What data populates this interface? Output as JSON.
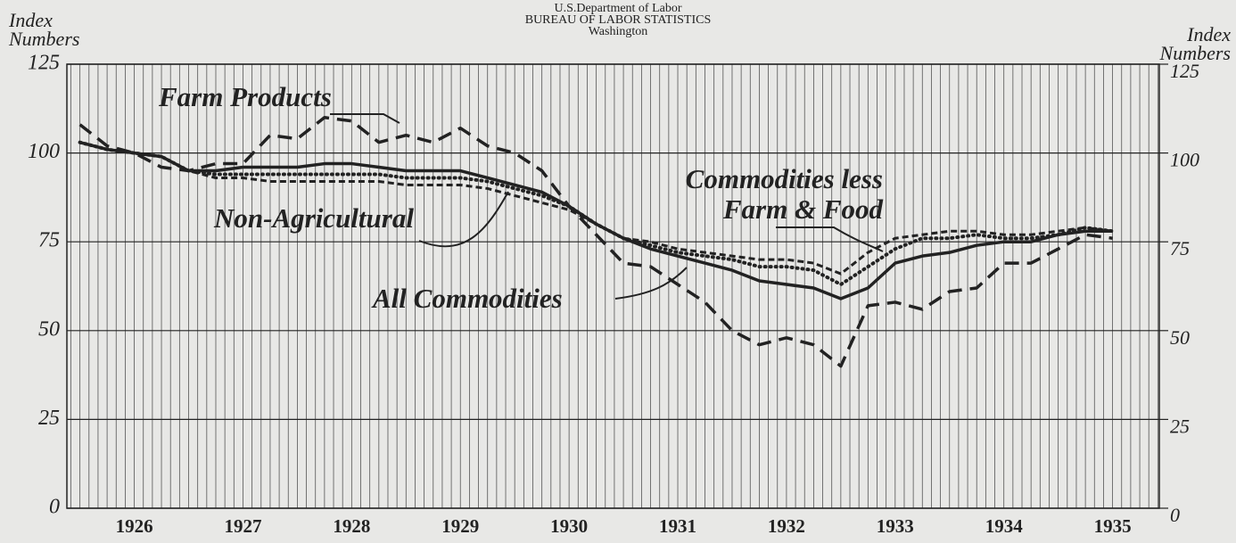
{
  "chart_data": {
    "type": "line",
    "header": [
      "U.S.Department of Labor",
      "BUREAU OF LABOR STATISTICS",
      "Washington"
    ],
    "y_label": "Index Numbers",
    "y2_label": "Index Numbers",
    "x": [
      1926.0,
      1926.25,
      1926.5,
      1926.75,
      1927.0,
      1927.25,
      1927.5,
      1927.75,
      1928.0,
      1928.25,
      1928.5,
      1928.75,
      1929.0,
      1929.25,
      1929.5,
      1929.75,
      1930.0,
      1930.25,
      1930.5,
      1930.75,
      1931.0,
      1931.25,
      1931.5,
      1931.75,
      1932.0,
      1932.25,
      1932.5,
      1932.75,
      1933.0,
      1933.25,
      1933.5,
      1933.75,
      1934.0,
      1934.25,
      1934.5,
      1934.75,
      1935.0,
      1935.25,
      1935.5
    ],
    "xlim": [
      1925.88,
      1935.93
    ],
    "xticks": [
      {
        "value": 1926.5,
        "label": "1926"
      },
      {
        "value": 1927.5,
        "label": "1927"
      },
      {
        "value": 1928.5,
        "label": "1928"
      },
      {
        "value": 1929.5,
        "label": "1929"
      },
      {
        "value": 1930.5,
        "label": "1930"
      },
      {
        "value": 1931.5,
        "label": "1931"
      },
      {
        "value": 1932.5,
        "label": "1932"
      },
      {
        "value": 1933.5,
        "label": "1933"
      },
      {
        "value": 1934.5,
        "label": "1934"
      },
      {
        "value": 1935.5,
        "label": "1935"
      }
    ],
    "ylim": [
      0,
      125
    ],
    "yticks": [
      0,
      25,
      50,
      75,
      100,
      125
    ],
    "y2lim": [
      0,
      125
    ],
    "y2ticks": [
      0,
      25,
      50,
      75,
      100,
      125
    ],
    "grid": true,
    "series": [
      {
        "name": "Farm Products",
        "color": "#222222",
        "dash": "dashed",
        "values": [
          108,
          102,
          100,
          96,
          95,
          97,
          97,
          105,
          104,
          110,
          109,
          103,
          105,
          103,
          107,
          102,
          100,
          95,
          85,
          77,
          69,
          68,
          63,
          58,
          50,
          46,
          48,
          46,
          40,
          57,
          58,
          56,
          61,
          62,
          69,
          69,
          73,
          77,
          76
        ]
      },
      {
        "name": "Non-Agricultural",
        "color": "#222222",
        "dash": "solid",
        "values": [
          103,
          101,
          100,
          99,
          95,
          95,
          96,
          96,
          96,
          97,
          97,
          96,
          95,
          95,
          95,
          93,
          91,
          89,
          85,
          80,
          76,
          73,
          71,
          69,
          67,
          64,
          63,
          62,
          59,
          62,
          69,
          71,
          72,
          74,
          75,
          75,
          77,
          78,
          78
        ]
      },
      {
        "name": "All Commodities",
        "color": "#222222",
        "dash": "dotted",
        "values": [
          103,
          101,
          100,
          99,
          95,
          94,
          94,
          94,
          94,
          94,
          94,
          94,
          93,
          93,
          93,
          92,
          90,
          88,
          85,
          80,
          76,
          74,
          72,
          71,
          70,
          68,
          68,
          67,
          63,
          68,
          73,
          76,
          76,
          77,
          76,
          76,
          77,
          79,
          78
        ]
      },
      {
        "name": "Commodities less Farm & Food",
        "color": "#222222",
        "dash": "dashdot",
        "values": [
          103,
          101,
          100,
          99,
          95,
          93,
          93,
          92,
          92,
          92,
          92,
          92,
          91,
          91,
          91,
          90,
          88,
          86,
          84,
          80,
          76,
          75,
          73,
          72,
          71,
          70,
          70,
          69,
          66,
          72,
          76,
          77,
          78,
          78,
          77,
          77,
          78,
          79,
          78
        ]
      }
    ]
  }
}
